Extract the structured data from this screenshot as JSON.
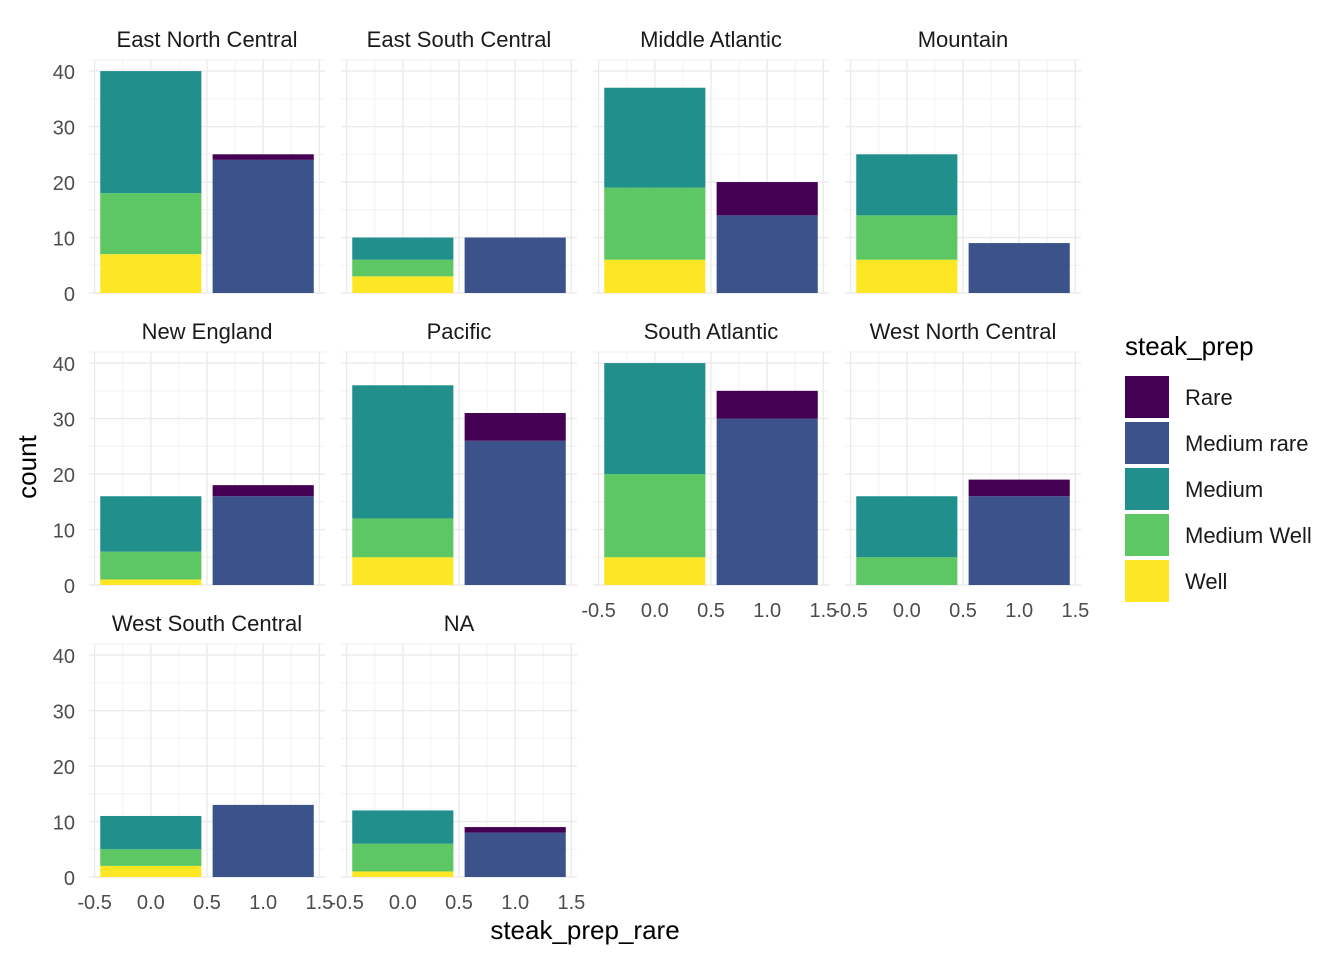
{
  "chart_data": {
    "type": "bar",
    "stacked": true,
    "faceted": true,
    "xlabel": "steak_prep_rare",
    "ylabel": "count",
    "x_ticks": [
      "-0.5",
      "0.0",
      "0.5",
      "1.0",
      "1.5"
    ],
    "y_ticks": [
      "0",
      "10",
      "20",
      "30",
      "40"
    ],
    "xlim": [
      -0.55,
      1.55
    ],
    "ylim": [
      0,
      42
    ],
    "grid": true,
    "legend_position": "right",
    "legend": {
      "title": "steak_prep",
      "items": [
        {
          "label": "Rare",
          "color": "#440154"
        },
        {
          "label": "Medium rare",
          "color": "#3B528B"
        },
        {
          "label": "Medium",
          "color": "#21908C"
        },
        {
          "label": "Medium Well",
          "color": "#5DC863"
        },
        {
          "label": "Well",
          "color": "#FDE725"
        }
      ]
    },
    "stack_order_bottom_to_top": [
      "Well",
      "Medium Well",
      "Medium",
      "Medium rare",
      "Rare"
    ],
    "facets": [
      {
        "title": "East North Central",
        "bars": [
          {
            "x": 0,
            "segments": {
              "Well": 7,
              "Medium Well": 11,
              "Medium": 22
            }
          },
          {
            "x": 1,
            "segments": {
              "Medium rare": 24,
              "Rare": 1
            }
          }
        ]
      },
      {
        "title": "East South Central",
        "bars": [
          {
            "x": 0,
            "segments": {
              "Well": 3,
              "Medium Well": 3,
              "Medium": 4
            }
          },
          {
            "x": 1,
            "segments": {
              "Medium rare": 10
            }
          }
        ]
      },
      {
        "title": "Middle Atlantic",
        "bars": [
          {
            "x": 0,
            "segments": {
              "Well": 6,
              "Medium Well": 13,
              "Medium": 18
            }
          },
          {
            "x": 1,
            "segments": {
              "Medium rare": 14,
              "Rare": 6
            }
          }
        ]
      },
      {
        "title": "Mountain",
        "bars": [
          {
            "x": 0,
            "segments": {
              "Well": 6,
              "Medium Well": 8,
              "Medium": 11
            }
          },
          {
            "x": 1,
            "segments": {
              "Medium rare": 9
            }
          }
        ]
      },
      {
        "title": "New England",
        "bars": [
          {
            "x": 0,
            "segments": {
              "Well": 1,
              "Medium Well": 5,
              "Medium": 10
            }
          },
          {
            "x": 1,
            "segments": {
              "Medium rare": 16,
              "Rare": 2
            }
          }
        ]
      },
      {
        "title": "Pacific",
        "bars": [
          {
            "x": 0,
            "segments": {
              "Well": 5,
              "Medium Well": 7,
              "Medium": 24
            }
          },
          {
            "x": 1,
            "segments": {
              "Medium rare": 26,
              "Rare": 5
            }
          }
        ]
      },
      {
        "title": "South Atlantic",
        "bars": [
          {
            "x": 0,
            "segments": {
              "Well": 5,
              "Medium Well": 15,
              "Medium": 20
            }
          },
          {
            "x": 1,
            "segments": {
              "Medium rare": 30,
              "Rare": 5
            }
          }
        ]
      },
      {
        "title": "West North Central",
        "bars": [
          {
            "x": 0,
            "segments": {
              "Medium Well": 5,
              "Medium": 11
            }
          },
          {
            "x": 1,
            "segments": {
              "Medium rare": 16,
              "Rare": 3
            }
          }
        ]
      },
      {
        "title": "West South Central",
        "bars": [
          {
            "x": 0,
            "segments": {
              "Well": 2,
              "Medium Well": 3,
              "Medium": 6
            }
          },
          {
            "x": 1,
            "segments": {
              "Medium rare": 13
            }
          }
        ]
      },
      {
        "title": "NA",
        "bars": [
          {
            "x": 0,
            "segments": {
              "Well": 1,
              "Medium Well": 5,
              "Medium": 6
            }
          },
          {
            "x": 1,
            "segments": {
              "Medium rare": 8,
              "Rare": 1
            }
          }
        ]
      }
    ]
  }
}
